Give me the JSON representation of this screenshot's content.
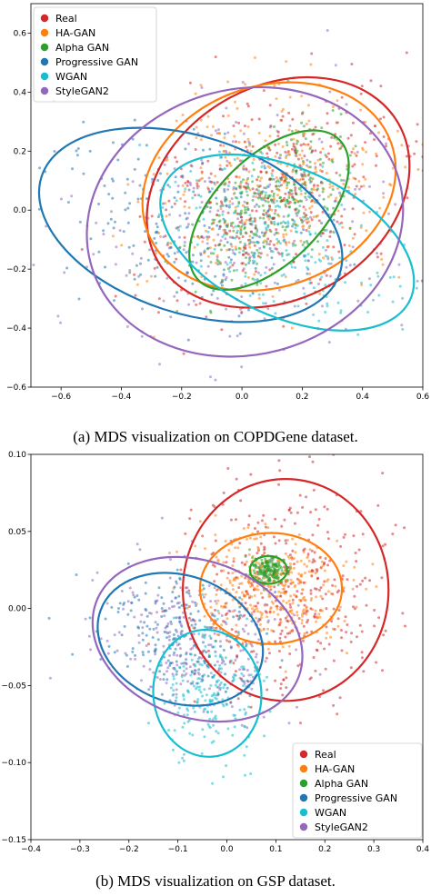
{
  "colors": {
    "Real": "#d62728",
    "HA-GAN": "#ff7f0e",
    "Alpha GAN": "#2ca02c",
    "Progressive GAN": "#1f77b4",
    "WGAN": "#17becf",
    "StyleGAN2": "#9467bd"
  },
  "chart_data": [
    {
      "type": "scatter",
      "caption": "(a) MDS visualization on COPDGene dataset.",
      "title": "",
      "xlabel": "",
      "ylabel": "",
      "xlim": [
        -0.7,
        0.6
      ],
      "ylim": [
        -0.6,
        0.7
      ],
      "xticks": [
        -0.6,
        -0.4,
        -0.2,
        0.0,
        0.2,
        0.4,
        0.6
      ],
      "yticks": [
        -0.6,
        -0.4,
        -0.2,
        0.0,
        0.2,
        0.4,
        0.6
      ],
      "xticklabels": [
        "−0.6",
        "−0.4",
        "−0.2",
        "0.0",
        "0.2",
        "0.4",
        "0.6"
      ],
      "yticklabels": [
        "−0.6",
        "−0.4",
        "−0.2",
        "0.0",
        "0.2",
        "0.4",
        "0.6"
      ],
      "grid": false,
      "legend_position": "top-left",
      "series": [
        {
          "name": "Real",
          "ellipse": {
            "cx": 0.12,
            "cy": 0.06,
            "rx": 0.46,
            "ry": 0.36,
            "angle": -30
          },
          "n_points": 350
        },
        {
          "name": "HA-GAN",
          "ellipse": {
            "cx": 0.09,
            "cy": 0.08,
            "rx": 0.43,
            "ry": 0.34,
            "angle": -20
          },
          "n_points": 350
        },
        {
          "name": "Alpha GAN",
          "ellipse": {
            "cx": 0.09,
            "cy": 0.0,
            "rx": 0.33,
            "ry": 0.18,
            "angle": -45
          },
          "n_points": 320
        },
        {
          "name": "Progressive GAN",
          "ellipse": {
            "cx": -0.17,
            "cy": -0.05,
            "rx": 0.52,
            "ry": 0.3,
            "angle": 18
          },
          "n_points": 230
        },
        {
          "name": "WGAN",
          "ellipse": {
            "cx": 0.15,
            "cy": -0.11,
            "rx": 0.45,
            "ry": 0.25,
            "angle": 25
          },
          "n_points": 230
        },
        {
          "name": "StyleGAN2",
          "ellipse": {
            "cx": 0.01,
            "cy": -0.04,
            "rx": 0.53,
            "ry": 0.45,
            "angle": -15
          },
          "n_points": 260
        }
      ]
    },
    {
      "type": "scatter",
      "caption": "(b) MDS visualization on GSP dataset.",
      "title": "",
      "xlabel": "",
      "ylabel": "",
      "xlim": [
        -0.4,
        0.4
      ],
      "ylim": [
        -0.15,
        0.1
      ],
      "xticks": [
        -0.4,
        -0.3,
        -0.2,
        -0.1,
        0.0,
        0.1,
        0.2,
        0.3,
        0.4
      ],
      "yticks": [
        -0.15,
        -0.1,
        -0.05,
        0.0,
        0.05,
        0.1
      ],
      "xticklabels": [
        "−0.4",
        "−0.3",
        "−0.2",
        "−0.1",
        "0.0",
        "0.1",
        "0.2",
        "0.3",
        "0.4"
      ],
      "yticklabels": [
        "−0.15",
        "−0.10",
        "−0.05",
        "0.00",
        "0.05",
        "0.10"
      ],
      "grid": false,
      "legend_position": "bottom-right",
      "series": [
        {
          "name": "Real",
          "ellipse": {
            "cx": 0.12,
            "cy": 0.012,
            "rx": 0.21,
            "ry": 0.072,
            "angle": 0
          },
          "n_points": 380
        },
        {
          "name": "HA-GAN",
          "ellipse": {
            "cx": 0.09,
            "cy": 0.013,
            "rx": 0.145,
            "ry": 0.036,
            "angle": 0
          },
          "n_points": 400
        },
        {
          "name": "Alpha GAN",
          "ellipse": {
            "cx": 0.085,
            "cy": 0.025,
            "rx": 0.038,
            "ry": 0.009,
            "angle": 0
          },
          "n_points": 200
        },
        {
          "name": "Progressive GAN",
          "ellipse": {
            "cx": -0.095,
            "cy": -0.02,
            "rx": 0.13,
            "ry": 0.055,
            "angle": -70
          },
          "n_points": 220
        },
        {
          "name": "WGAN",
          "ellipse": {
            "cx": -0.04,
            "cy": -0.055,
            "rx": 0.13,
            "ry": 0.035,
            "angle": -95
          },
          "n_points": 220
        },
        {
          "name": "StyleGAN2",
          "ellipse": {
            "cx": -0.06,
            "cy": -0.02,
            "rx": 0.16,
            "ry": 0.07,
            "angle": -70
          },
          "n_points": 240
        }
      ]
    }
  ]
}
